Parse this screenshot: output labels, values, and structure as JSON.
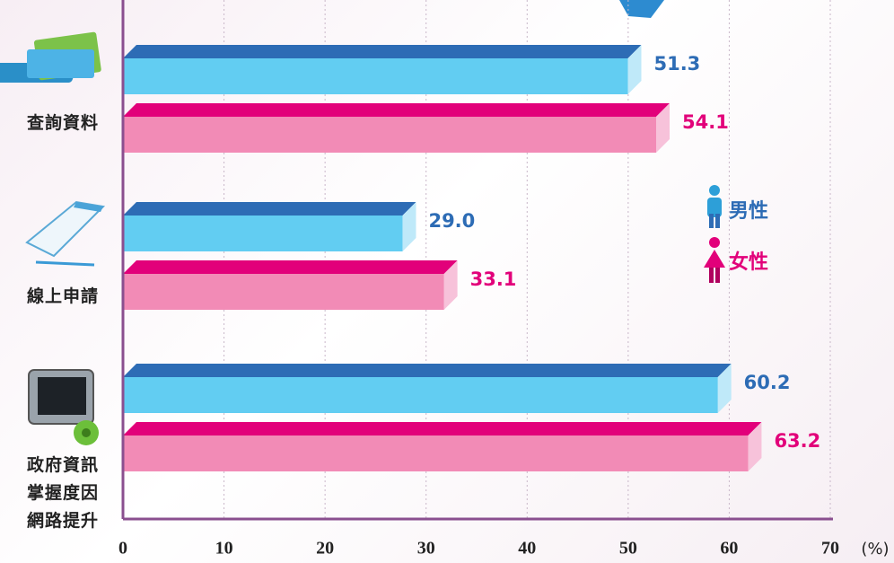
{
  "chart_data": {
    "type": "bar",
    "orientation": "horizontal",
    "categories": [
      "查詢資料",
      "線上申請",
      "政府資訊掌握度因網路提升"
    ],
    "series": [
      {
        "name": "男性",
        "color": "#62cdf2",
        "top_color": "#2d6cb5",
        "values": [
          51.3,
          29.0,
          60.2
        ],
        "value_labels": [
          "51.3",
          "29.0",
          "60.2"
        ]
      },
      {
        "name": "女性",
        "color": "#f28bb6",
        "top_color": "#e2007a",
        "values": [
          54.1,
          33.1,
          63.2
        ],
        "value_labels": [
          "54.1",
          "33.1",
          "63.2"
        ]
      }
    ],
    "xlim": [
      0,
      70
    ],
    "xticks": [
      0,
      10,
      20,
      30,
      40,
      50,
      60,
      70
    ],
    "x_unit": "(%)",
    "grid": true
  }
}
